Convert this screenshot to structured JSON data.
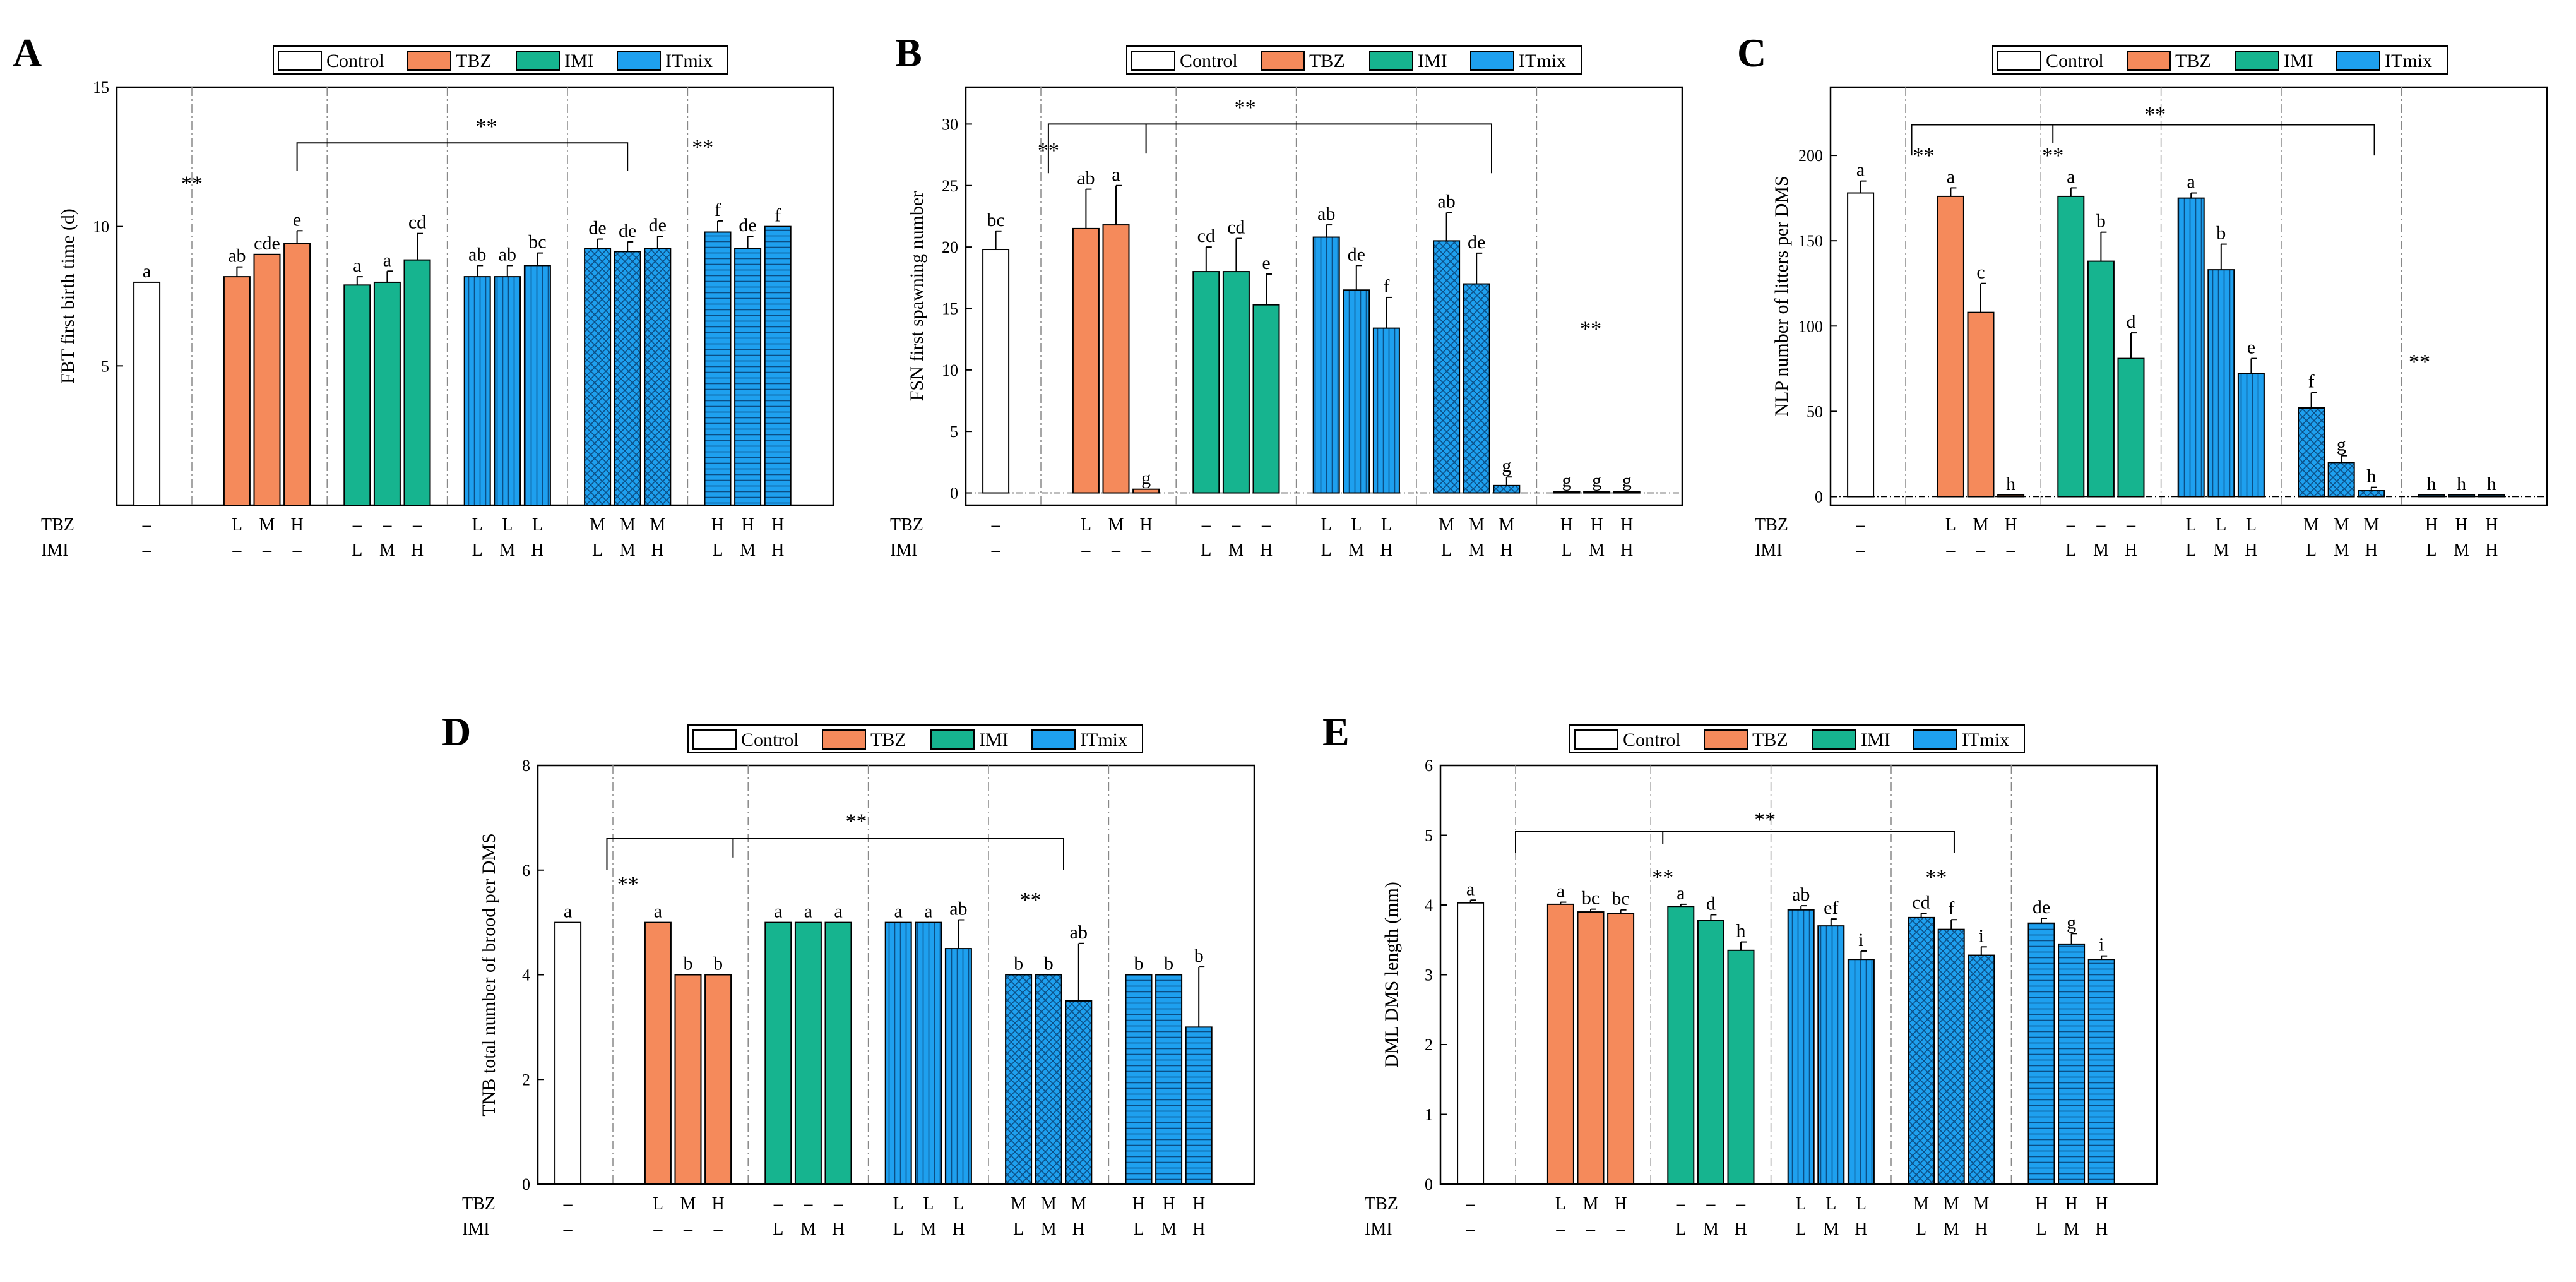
{
  "figure": {
    "description_none": ""
  },
  "legend_labels": [
    "Control",
    "TBZ",
    "IMI",
    "ITmix"
  ],
  "colors": {
    "Control": "#ffffff",
    "TBZ": "#f58a5b",
    "IMI": "#16b48f",
    "ITmix": "#1ea0ef",
    "sig": "#2c3e73",
    "divider": "#888888"
  },
  "row_labels": [
    "TBZ",
    "IMI"
  ],
  "groups": [
    {
      "dose_tbz": [
        "–"
      ],
      "dose_imi": [
        "–"
      ],
      "fill": "Control",
      "pattern": [
        "none"
      ]
    },
    {
      "dose_tbz": [
        "L",
        "M",
        "H"
      ],
      "dose_imi": [
        "–",
        "–",
        "–"
      ],
      "fill": "TBZ",
      "pattern": [
        "none",
        "none",
        "none"
      ]
    },
    {
      "dose_tbz": [
        "–",
        "–",
        "–"
      ],
      "dose_imi": [
        "L",
        "M",
        "H"
      ],
      "fill": "IMI",
      "pattern": [
        "none",
        "none",
        "none"
      ]
    },
    {
      "dose_tbz": [
        "L",
        "L",
        "L"
      ],
      "dose_imi": [
        "L",
        "M",
        "H"
      ],
      "fill": "ITmix",
      "pattern": [
        "vert",
        "vert",
        "vert"
      ]
    },
    {
      "dose_tbz": [
        "M",
        "M",
        "M"
      ],
      "dose_imi": [
        "L",
        "M",
        "H"
      ],
      "fill": "ITmix",
      "pattern": [
        "cross",
        "cross",
        "cross"
      ]
    },
    {
      "dose_tbz": [
        "H",
        "H",
        "H"
      ],
      "dose_imi": [
        "L",
        "M",
        "H"
      ],
      "fill": "ITmix",
      "pattern": [
        "horiz",
        "horiz",
        "horiz"
      ]
    }
  ],
  "chart_data": [
    {
      "panel": "A",
      "type": "bar",
      "ylabel": "FBT first birth time (d)",
      "ylim": [
        0,
        15
      ],
      "yticks": [
        5,
        10,
        15
      ],
      "values": [
        8.0,
        8.2,
        9.0,
        9.4,
        7.9,
        8.0,
        8.8,
        8.2,
        8.2,
        8.6,
        9.2,
        9.1,
        9.2,
        9.8,
        9.2,
        10.0
      ],
      "errors": [
        0,
        0.35,
        0,
        0.45,
        0.3,
        0.4,
        0.95,
        0.4,
        0.4,
        0.45,
        0.35,
        0.35,
        0.45,
        0.4,
        0.45,
        0
      ],
      "letters": [
        "a",
        "ab",
        "cde",
        "e",
        "a",
        "a",
        "cd",
        "ab",
        "ab",
        "bc",
        "de",
        "de",
        "de",
        "f",
        "de",
        "f"
      ],
      "sig_labels": [
        {
          "text": "**",
          "type": "blue",
          "x_slot": 2.5,
          "y": 11.3
        },
        {
          "text": "**",
          "type": "blue",
          "x_slot": 19.5,
          "y": 12.6
        },
        {
          "text": "**",
          "type": "black",
          "x_slot": 12.3,
          "y": 13.35
        }
      ],
      "brackets": [
        {
          "from": 6,
          "to": 17,
          "y": 13.0,
          "drop": 12.0,
          "mid": null
        }
      ]
    },
    {
      "panel": "B",
      "type": "bar",
      "ylabel": "FSN first spawning number",
      "ylim": [
        -1,
        33
      ],
      "yticks": [
        0,
        5,
        10,
        15,
        20,
        25,
        30
      ],
      "values": [
        19.8,
        21.5,
        21.8,
        0.3,
        18.0,
        18.0,
        15.3,
        20.8,
        16.5,
        13.4,
        20.5,
        17.0,
        0.6,
        0.1,
        0.1,
        0.1
      ],
      "errors": [
        1.5,
        3.2,
        3.2,
        0,
        2.0,
        2.7,
        2.5,
        1.0,
        2.0,
        2.5,
        2.3,
        2.5,
        0.7,
        0,
        0,
        0
      ],
      "letters": [
        "bc",
        "ab",
        "a",
        "g",
        "cd",
        "cd",
        "e",
        "ab",
        "de",
        "f",
        "ab",
        "de",
        "g",
        "g",
        "g",
        "g"
      ],
      "baseline_dashed": true,
      "sig_labels": [
        {
          "text": "**",
          "type": "blue",
          "x_slot": 2.75,
          "y": 27.3
        },
        {
          "text": "**",
          "type": "blue",
          "x_slot": 20.8,
          "y": 12.8
        },
        {
          "text": "**",
          "type": "black",
          "x_slot": 9.3,
          "y": 30.8
        }
      ],
      "brackets": [
        {
          "from": 2.75,
          "to": 17.5,
          "y": 30.0,
          "drop": 26.0,
          "mid": 6.0
        }
      ]
    },
    {
      "panel": "C",
      "type": "bar",
      "ylabel": "NLP number of litters per DMS",
      "ylim": [
        -5,
        240
      ],
      "yticks": [
        0,
        50,
        100,
        150,
        200
      ],
      "values": [
        178,
        176,
        108,
        1.0,
        176,
        138,
        81,
        175,
        133,
        72,
        52,
        20,
        3.5,
        1.0,
        1.0,
        1.0
      ],
      "errors": [
        7,
        5,
        17,
        0,
        5,
        17,
        15,
        3,
        15,
        9,
        9,
        4,
        2,
        0,
        0,
        0
      ],
      "letters": [
        "a",
        "a",
        "c",
        "h",
        "a",
        "b",
        "d",
        "a",
        "b",
        "e",
        "f",
        "g",
        "h",
        "h",
        "h",
        "h"
      ],
      "baseline_dashed": true,
      "sig_labels": [
        {
          "text": "**",
          "type": "blue",
          "x_slot": 3.1,
          "y": 196
        },
        {
          "text": "**",
          "type": "blue",
          "x_slot": 7.4,
          "y": 196
        },
        {
          "text": "**",
          "type": "blue",
          "x_slot": 19.6,
          "y": 75
        },
        {
          "text": "**",
          "type": "black",
          "x_slot": 10.8,
          "y": 220
        }
      ],
      "brackets": [
        {
          "from": 2.7,
          "to": 18.1,
          "y": 218,
          "drop": 200,
          "mid": 7.4
        }
      ]
    },
    {
      "panel": "D",
      "type": "bar",
      "ylabel": "TNB total number of brood per DMS",
      "ylim": [
        0,
        8
      ],
      "yticks": [
        0,
        2,
        4,
        6,
        8
      ],
      "values": [
        5.0,
        5.0,
        4.0,
        4.0,
        5.0,
        5.0,
        5.0,
        5.0,
        5.0,
        4.5,
        4.0,
        4.0,
        3.5,
        4.0,
        4.0,
        3.0
      ],
      "errors": [
        0,
        0,
        0,
        0,
        0,
        0,
        0,
        0,
        0,
        0.55,
        0,
        0,
        1.1,
        0,
        0,
        1.15
      ],
      "letters": [
        "a",
        "a",
        "b",
        "b",
        "a",
        "a",
        "a",
        "a",
        "a",
        "ab",
        "b",
        "b",
        "ab",
        "b",
        "b",
        "b"
      ],
      "sig_labels": [
        {
          "text": "**",
          "type": "blue",
          "x_slot": 3.0,
          "y": 5.6
        },
        {
          "text": "**",
          "type": "blue",
          "x_slot": 16.4,
          "y": 5.3
        },
        {
          "text": "**",
          "type": "black",
          "x_slot": 10.6,
          "y": 6.8
        }
      ],
      "brackets": [
        {
          "from": 2.3,
          "to": 17.5,
          "y": 6.6,
          "drop": 6.0,
          "mid": 6.5
        }
      ]
    },
    {
      "panel": "E",
      "type": "bar",
      "ylabel": "DML DMS length (mm)",
      "ylim": [
        0,
        6
      ],
      "yticks": [
        0,
        1,
        2,
        3,
        4,
        5,
        6
      ],
      "values": [
        4.03,
        4.01,
        3.9,
        3.88,
        3.98,
        3.78,
        3.35,
        3.93,
        3.7,
        3.22,
        3.82,
        3.65,
        3.28,
        3.74,
        3.44,
        3.22
      ],
      "errors": [
        0.04,
        0.03,
        0.04,
        0.05,
        0.03,
        0.08,
        0.12,
        0.06,
        0.1,
        0.12,
        0.06,
        0.14,
        0.12,
        0.07,
        0.15,
        0.05
      ],
      "letters": [
        "a",
        "a",
        "bc",
        "bc",
        "a",
        "d",
        "h",
        "ab",
        "ef",
        "i",
        "cd",
        "f",
        "i",
        "de",
        "g",
        "i"
      ],
      "sig_labels": [
        {
          "text": "**",
          "type": "blue",
          "x_slot": 7.4,
          "y": 4.3
        },
        {
          "text": "**",
          "type": "blue",
          "x_slot": 16.5,
          "y": 4.3
        },
        {
          "text": "**",
          "type": "black",
          "x_slot": 10.8,
          "y": 5.12
        }
      ],
      "brackets": [
        {
          "from": 2.5,
          "to": 17.1,
          "y": 5.05,
          "drop": 4.75,
          "mid": 7.4
        }
      ]
    }
  ]
}
